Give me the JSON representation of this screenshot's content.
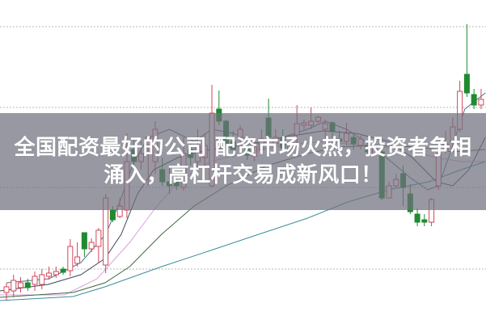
{
  "headline": {
    "line1": "全国配资最好的公司 配资市场火热，投资者争相",
    "line2": "涌入，高杠杆交易成新风口！"
  },
  "colors": {
    "up": "#d2465a",
    "down": "#1f8a2f",
    "grid": "#b8b8b8",
    "banner": "#70707e"
  },
  "chart_data": {
    "type": "candlestick",
    "grid": "dotted-horizontal",
    "candles_ohlc": [
      [
        3.8,
        5.0,
        2.8,
        4.5
      ],
      [
        4.0,
        6.0,
        3.2,
        5.3
      ],
      [
        4.4,
        5.7,
        3.8,
        5.0
      ],
      [
        5.0,
        5.5,
        4.0,
        4.4
      ],
      [
        4.8,
        6.4,
        4.0,
        5.8
      ],
      [
        4.8,
        6.7,
        4.2,
        6.0
      ],
      [
        5.8,
        7.0,
        5.4,
        6.2
      ],
      [
        6.0,
        7.0,
        5.6,
        6.4
      ],
      [
        6.7,
        7.0,
        6.0,
        6.3
      ],
      [
        6.5,
        10.4,
        5.8,
        9.5
      ],
      [
        7.4,
        10.0,
        7.0,
        8.2
      ],
      [
        11.2,
        11.2,
        8.2,
        9.2
      ],
      [
        9.2,
        10.5,
        8.8,
        10.0
      ],
      [
        9.5,
        11.8,
        7.5,
        11.5
      ],
      [
        7.2,
        16.0,
        6.2,
        15.5
      ],
      [
        14.0,
        14.5,
        12.5,
        12.8
      ],
      [
        13.2,
        15.5,
        13.0,
        14.5
      ],
      [
        14.0,
        23.5,
        13.0,
        20.0
      ],
      [
        21.5,
        23.0,
        19.5,
        20.0
      ],
      [
        20.0,
        22.5,
        19.0,
        21.0
      ],
      [
        22.0,
        23.2,
        17.0,
        23.0
      ],
      [
        20.0,
        25.0,
        18.5,
        24.0
      ],
      [
        19.0,
        20.5,
        17.0,
        17.5
      ],
      [
        17.5,
        19.5,
        16.0,
        17.0
      ],
      [
        17.5,
        18.5,
        16.5,
        17.0
      ],
      [
        16.8,
        23.0,
        16.4,
        21.0
      ],
      [
        21.5,
        22.2,
        19.5,
        20.5
      ],
      [
        20.0,
        24.0,
        19.0,
        22.0
      ],
      [
        20.5,
        23.5,
        17.5,
        22.0
      ],
      [
        17.0,
        29.5,
        16.8,
        26.0
      ],
      [
        26.5,
        28.8,
        24.5,
        25.0
      ],
      [
        25.0,
        25.2,
        21.0,
        22.0
      ],
      [
        22.5,
        23.8,
        20.5,
        21.5
      ],
      [
        23.0,
        24.5,
        21.5,
        24.0
      ],
      [
        21.7,
        22.8,
        20.2,
        20.8
      ],
      [
        20.7,
        23.0,
        20.0,
        21.8
      ],
      [
        21.5,
        24.0,
        21.0,
        22.8
      ],
      [
        25.4,
        27.8,
        22.7,
        23.0
      ],
      [
        22.2,
        24.0,
        21.0,
        23.0
      ],
      [
        22.8,
        24.0,
        21.2,
        21.7
      ],
      [
        21.5,
        22.5,
        20.7,
        22.0
      ],
      [
        23.3,
        27.0,
        21.7,
        24.7
      ],
      [
        24.5,
        25.2,
        24.0,
        24.8
      ],
      [
        24.5,
        26.7,
        24.0,
        25.0
      ],
      [
        25.0,
        25.7,
        24.8,
        25.5
      ],
      [
        24.0,
        25.2,
        22.8,
        24.7
      ],
      [
        24.8,
        25.0,
        23.0,
        23.8
      ],
      [
        22.8,
        23.8,
        21.5,
        22.5
      ],
      [
        22.5,
        24.8,
        22.0,
        23.5
      ],
      [
        23.0,
        23.5,
        21.5,
        22.2
      ],
      [
        22.0,
        23.2,
        21.5,
        22.8
      ],
      [
        22.0,
        22.7,
        20.8,
        21.2
      ],
      [
        21.0,
        22.0,
        20.8,
        21.5
      ],
      [
        21.2,
        21.5,
        15.2,
        15.5
      ],
      [
        15.5,
        17.5,
        15.5,
        17.0
      ],
      [
        17.0,
        18.5,
        16.8,
        17.8
      ],
      [
        18.5,
        19.5,
        14.5,
        16.8
      ],
      [
        16.0,
        17.2,
        13.5,
        13.8
      ],
      [
        13.5,
        14.2,
        12.0,
        12.5
      ],
      [
        12.8,
        13.5,
        12.0,
        12.5
      ],
      [
        12.5,
        15.5,
        12.0,
        15.3
      ],
      [
        17.0,
        21.5,
        16.5,
        21.0
      ],
      [
        21.5,
        23.8,
        21.0,
        22.2
      ],
      [
        22.5,
        25.5,
        22.0,
        24.3
      ],
      [
        24.0,
        30.0,
        23.7,
        28.7
      ],
      [
        30.8,
        37.0,
        28.0,
        28.5
      ],
      [
        28.3,
        29.0,
        26.5,
        27.0
      ],
      [
        27.0,
        29.0,
        26.5,
        27.7
      ]
    ],
    "moving_averages": [
      {
        "color": "#4d7080",
        "points": [
          [
            0,
            5
          ],
          [
            6,
            5.5
          ],
          [
            10.5,
            7.5
          ],
          [
            14,
            11
          ],
          [
            16,
            15
          ],
          [
            18,
            20
          ],
          [
            20,
            23
          ],
          [
            23,
            24
          ],
          [
            26.5,
            22.5
          ],
          [
            29,
            24
          ],
          [
            32,
            23.5
          ],
          [
            35.5,
            22.2
          ],
          [
            39,
            23
          ],
          [
            42.5,
            24
          ],
          [
            45,
            25
          ],
          [
            48,
            24
          ],
          [
            51.5,
            22
          ],
          [
            55,
            19.5
          ],
          [
            57,
            18
          ],
          [
            59.5,
            16.5
          ],
          [
            61,
            17
          ],
          [
            63,
            22
          ],
          [
            64.7,
            26.5
          ],
          [
            67.6,
            28.5
          ]
        ]
      },
      {
        "color": "#3c4658",
        "points": [
          [
            -0.9,
            4
          ],
          [
            5.9,
            4.8
          ],
          [
            10.5,
            6
          ],
          [
            13.9,
            8
          ],
          [
            16.2,
            11
          ],
          [
            18.5,
            16
          ],
          [
            20.8,
            19
          ],
          [
            24.2,
            20.5
          ],
          [
            28.8,
            21.5
          ],
          [
            33.3,
            22
          ],
          [
            39,
            23
          ],
          [
            44.7,
            23.8
          ],
          [
            49.3,
            23.5
          ],
          [
            53.9,
            22.5
          ],
          [
            57.3,
            20.5
          ],
          [
            60.7,
            17.5
          ],
          [
            63,
            17
          ],
          [
            65.3,
            19
          ],
          [
            67.6,
            23
          ]
        ]
      },
      {
        "color": "#dba0dd",
        "points": [
          [
            -1,
            3.5
          ],
          [
            8.2,
            3.5
          ],
          [
            12.8,
            5.5
          ],
          [
            17.4,
            10
          ],
          [
            20.8,
            14
          ],
          [
            24.2,
            17.5
          ],
          [
            28.8,
            20
          ],
          [
            33.3,
            21
          ],
          [
            39,
            22
          ],
          [
            44.7,
            22.5
          ],
          [
            50.5,
            22
          ],
          [
            56.2,
            21.5
          ],
          [
            60.7,
            20.5
          ],
          [
            64.2,
            20
          ],
          [
            67.6,
            20
          ]
        ]
      },
      {
        "color": "#3d6a3d",
        "points": [
          [
            -1,
            3.2
          ],
          [
            9.4,
            3.8
          ],
          [
            13.9,
            5
          ],
          [
            17.4,
            7
          ],
          [
            21.9,
            11
          ],
          [
            26.5,
            14.5
          ],
          [
            31,
            17
          ],
          [
            36.8,
            19.5
          ],
          [
            42.5,
            21
          ],
          [
            47,
            21.8
          ],
          [
            51.6,
            22
          ],
          [
            58.4,
            21.8
          ],
          [
            63,
            21.2
          ],
          [
            67.6,
            21.5
          ]
        ]
      },
      {
        "color": "#3f8c9a",
        "points": [
          [
            -1,
            2.8
          ],
          [
            9.4,
            3.3
          ],
          [
            13.9,
            4.5
          ],
          [
            21.9,
            7
          ],
          [
            28.8,
            9
          ],
          [
            35.6,
            11
          ],
          [
            42.5,
            13
          ],
          [
            48.2,
            15
          ],
          [
            53.9,
            16.5
          ],
          [
            59.6,
            17.5
          ],
          [
            64.2,
            19
          ],
          [
            67.6,
            20
          ]
        ]
      }
    ],
    "gridlines": [
      6.7,
      16.8,
      26.7,
      36.7
    ]
  }
}
